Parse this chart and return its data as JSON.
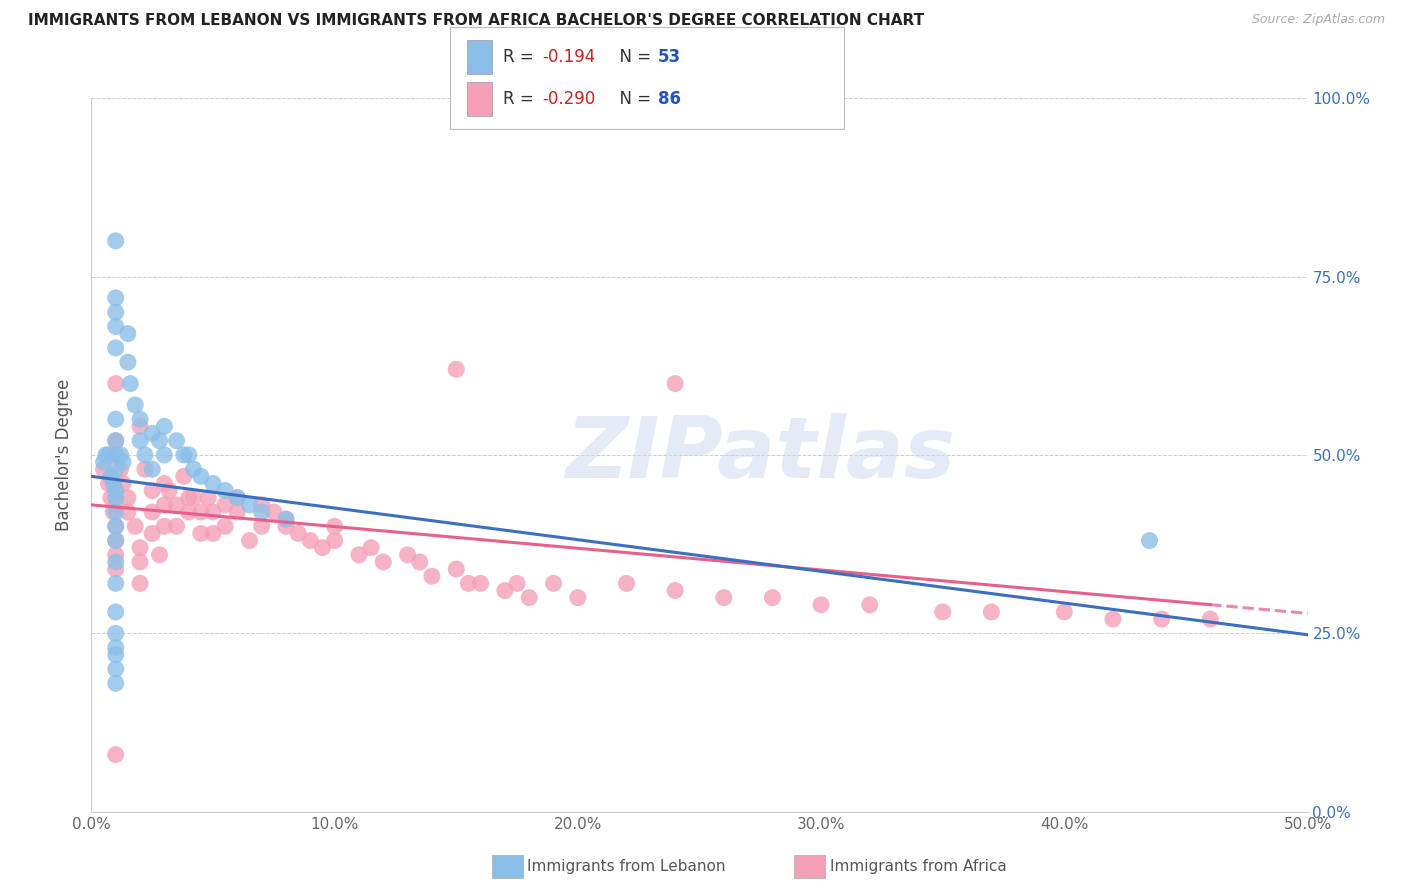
{
  "title": "IMMIGRANTS FROM LEBANON VS IMMIGRANTS FROM AFRICA BACHELOR'S DEGREE CORRELATION CHART",
  "source": "Source: ZipAtlas.com",
  "ylabel": "Bachelor's Degree",
  "legend_label1": "Immigrants from Lebanon",
  "legend_label2": "Immigrants from Africa",
  "R1": -0.194,
  "N1": 53,
  "R2": -0.29,
  "N2": 86,
  "xlim": [
    0.0,
    0.5
  ],
  "ylim": [
    0.0,
    1.0
  ],
  "xticks": [
    0.0,
    0.1,
    0.2,
    0.3,
    0.4,
    0.5
  ],
  "xticklabels": [
    "0.0%",
    "10.0%",
    "20.0%",
    "30.0%",
    "40.0%",
    "50.0%"
  ],
  "yticks": [
    0.0,
    0.25,
    0.5,
    0.75,
    1.0
  ],
  "yticklabels_right": [
    "0.0%",
    "25.0%",
    "50.0%",
    "75.0%",
    "100.0%"
  ],
  "watermark": "ZIPatlas",
  "color_blue": "#8BBFE8",
  "color_pink": "#F5A0B8",
  "color_blue_line": "#3B6FBF",
  "color_pink_line": "#E8608A",
  "blue_x": [
    0.005,
    0.006,
    0.007,
    0.008,
    0.009,
    0.01,
    0.01,
    0.01,
    0.01,
    0.01,
    0.01,
    0.01,
    0.01,
    0.01,
    0.01,
    0.01,
    0.01,
    0.01,
    0.01,
    0.01,
    0.012,
    0.013,
    0.015,
    0.015,
    0.016,
    0.018,
    0.02,
    0.02,
    0.022,
    0.025,
    0.025,
    0.028,
    0.03,
    0.03,
    0.035,
    0.038,
    0.04,
    0.042,
    0.045,
    0.05,
    0.055,
    0.06,
    0.065,
    0.07,
    0.08,
    0.01,
    0.01,
    0.01,
    0.01,
    0.01,
    0.435,
    0.01,
    0.01
  ],
  "blue_y": [
    0.49,
    0.5,
    0.5,
    0.47,
    0.46,
    0.55,
    0.52,
    0.5,
    0.48,
    0.45,
    0.44,
    0.42,
    0.4,
    0.38,
    0.35,
    0.32,
    0.28,
    0.25,
    0.22,
    0.2,
    0.5,
    0.49,
    0.67,
    0.63,
    0.6,
    0.57,
    0.55,
    0.52,
    0.5,
    0.53,
    0.48,
    0.52,
    0.54,
    0.5,
    0.52,
    0.5,
    0.5,
    0.48,
    0.47,
    0.46,
    0.45,
    0.44,
    0.43,
    0.42,
    0.41,
    0.7,
    0.72,
    0.68,
    0.65,
    0.8,
    0.38,
    0.23,
    0.18
  ],
  "pink_x": [
    0.005,
    0.007,
    0.008,
    0.009,
    0.01,
    0.01,
    0.01,
    0.01,
    0.01,
    0.01,
    0.01,
    0.01,
    0.012,
    0.013,
    0.015,
    0.015,
    0.018,
    0.02,
    0.02,
    0.02,
    0.02,
    0.022,
    0.025,
    0.025,
    0.025,
    0.028,
    0.03,
    0.03,
    0.03,
    0.032,
    0.035,
    0.035,
    0.038,
    0.04,
    0.04,
    0.042,
    0.045,
    0.045,
    0.048,
    0.05,
    0.05,
    0.055,
    0.055,
    0.06,
    0.06,
    0.065,
    0.07,
    0.07,
    0.075,
    0.08,
    0.08,
    0.085,
    0.09,
    0.095,
    0.1,
    0.1,
    0.11,
    0.115,
    0.12,
    0.13,
    0.135,
    0.14,
    0.15,
    0.155,
    0.16,
    0.17,
    0.175,
    0.18,
    0.19,
    0.2,
    0.22,
    0.24,
    0.26,
    0.28,
    0.3,
    0.32,
    0.35,
    0.37,
    0.4,
    0.42,
    0.44,
    0.46,
    0.01,
    0.01,
    0.24,
    0.15
  ],
  "pink_y": [
    0.48,
    0.46,
    0.44,
    0.42,
    0.4,
    0.38,
    0.36,
    0.34,
    0.5,
    0.52,
    0.45,
    0.43,
    0.48,
    0.46,
    0.44,
    0.42,
    0.4,
    0.37,
    0.35,
    0.32,
    0.54,
    0.48,
    0.45,
    0.42,
    0.39,
    0.36,
    0.46,
    0.43,
    0.4,
    0.45,
    0.43,
    0.4,
    0.47,
    0.44,
    0.42,
    0.44,
    0.42,
    0.39,
    0.44,
    0.42,
    0.39,
    0.43,
    0.4,
    0.44,
    0.42,
    0.38,
    0.43,
    0.4,
    0.42,
    0.41,
    0.4,
    0.39,
    0.38,
    0.37,
    0.4,
    0.38,
    0.36,
    0.37,
    0.35,
    0.36,
    0.35,
    0.33,
    0.34,
    0.32,
    0.32,
    0.31,
    0.32,
    0.3,
    0.32,
    0.3,
    0.32,
    0.31,
    0.3,
    0.3,
    0.29,
    0.29,
    0.28,
    0.28,
    0.28,
    0.27,
    0.27,
    0.27,
    0.08,
    0.6,
    0.6,
    0.62
  ],
  "blue_line_y0": 0.47,
  "blue_line_y1": 0.248,
  "pink_line_y0": 0.43,
  "pink_line_y1": 0.278
}
